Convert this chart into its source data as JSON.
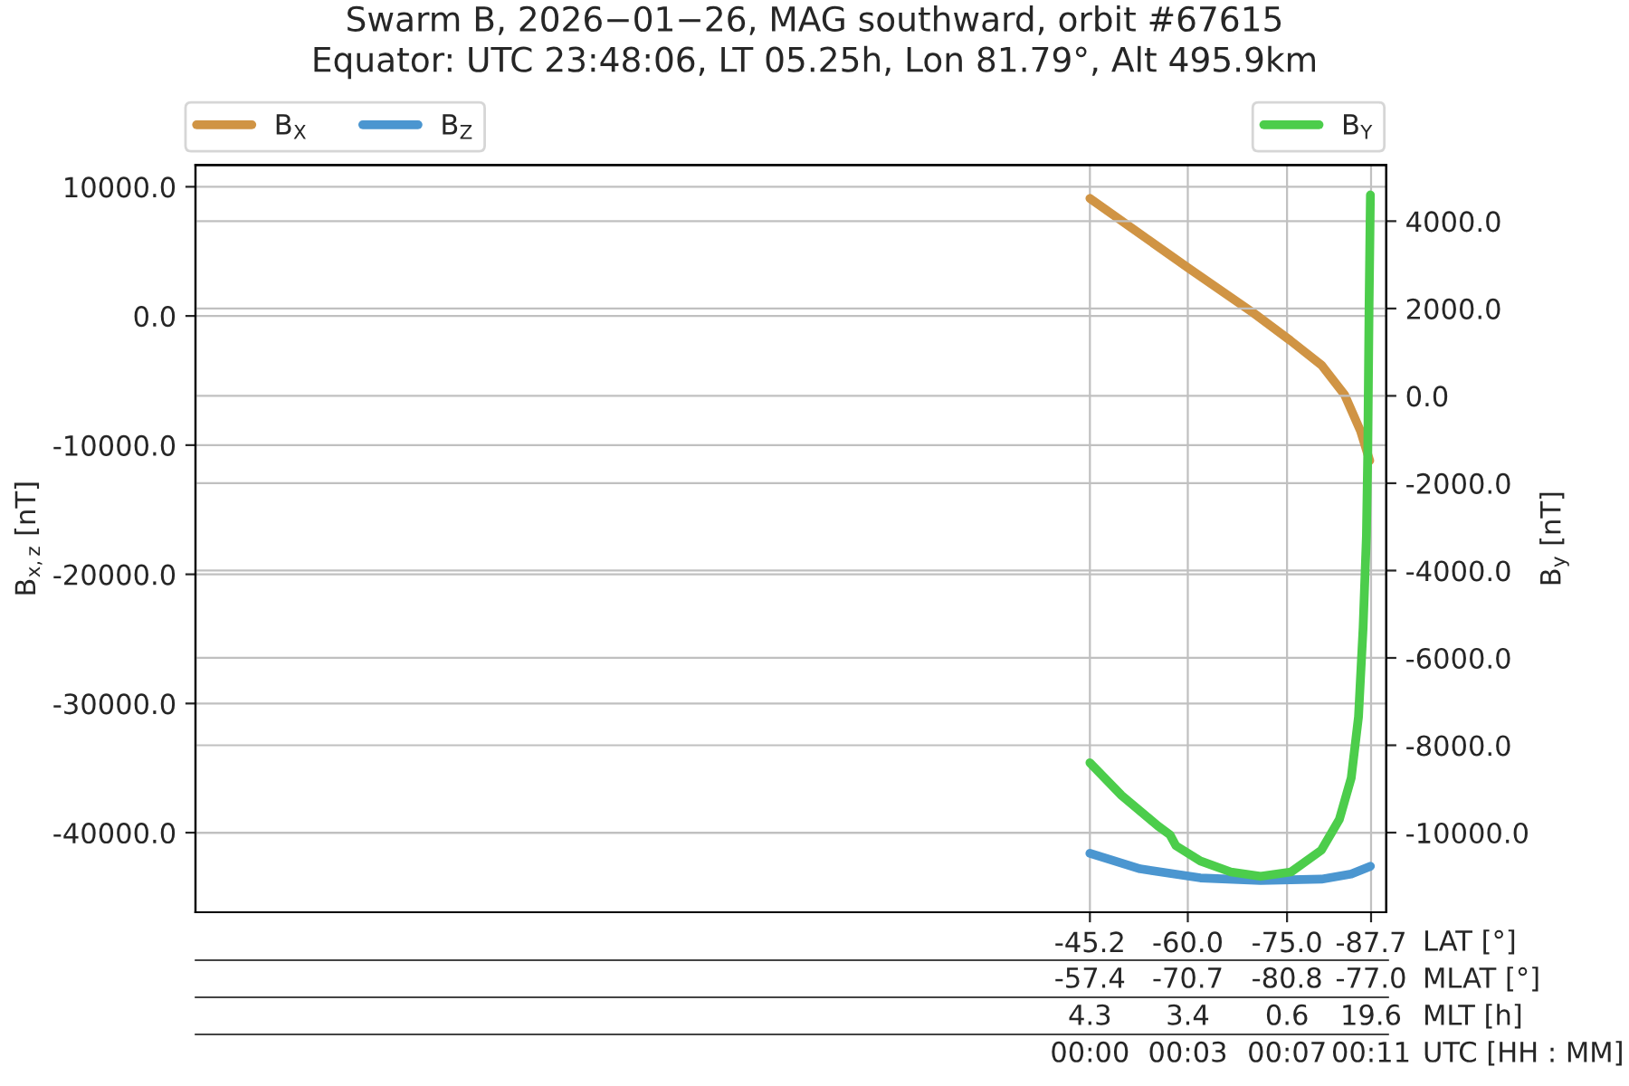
{
  "chart_data": {
    "type": "line",
    "title": "Swarm B, 2026−01−26, MAG southward, orbit #67615",
    "subtitle": "Equator: UTC 23:48:06, LT 05.25h, Lon 81.79°, Alt 495.9km",
    "ylabel": "B$_{x,z}$ [nT]",
    "y2label": "B$_{y}$ [nT]",
    "xlabel": "LAT [°]",
    "annotations": [
      "-57.4",
      "-70.7",
      "-80.8",
      "-77.0",
      "MLAT [°]",
      "4.3",
      "3.4",
      "0.6",
      "19.6",
      "MLT [h]",
      "00:00",
      "00:03",
      "00:07",
      "00:11",
      "UTC [HH : MM]"
    ],
    "series": [
      {
        "name": "B$_{X}$",
        "color": "#d09444",
        "x": [
          -45.2,
          -60.1,
          -70.0,
          -75.5,
          -80.2,
          -83.7,
          -86.1,
          -87.5
        ],
        "values": [
          9100,
          3700,
          200,
          -1900,
          -3800,
          -6100,
          -8900,
          -11200
        ]
      },
      {
        "name": "B$_{Z}$",
        "color": "#4b96d0",
        "x": [
          -45.2,
          -52.8,
          -61.9,
          -71.0,
          -80.2,
          -84.7,
          -87.6
        ],
        "values": [
          -41600,
          -42800,
          -43500,
          -43700,
          -43600,
          -43200,
          -42600
        ]
      },
      {
        "name": "B$_{Y}$",
        "color": "#4ccd4b",
        "axis": "y2",
        "x": [
          -45.2,
          -50.0,
          -55.5,
          -57.3,
          -58.2,
          -61.9,
          -66.5,
          -71.0,
          -75.6,
          -80.2,
          -82.9,
          -84.7,
          -85.8,
          -86.5,
          -87.0,
          -87.2,
          -87.4,
          -87.6
        ],
        "values": [
          -8400,
          -9150,
          -9850,
          -10050,
          -10300,
          -10650,
          -10900,
          -11000,
          -10900,
          -10400,
          -9700,
          -8750,
          -7350,
          -5300,
          -3200,
          -1300,
          2050,
          4600
        ]
      }
    ],
    "xlim": [
      90,
      -90
    ],
    "xticks": [
      -45.2,
      {
        "value": -60,
        "label": "-60.0"
      },
      {
        "value": -75,
        "label": "-75.0"
      },
      -87.7
    ],
    "ylim": [
      -46160,
      11680
    ],
    "yticks": [
      {
        "value": 10000,
        "label": "10000.0"
      },
      {
        "value": 0,
        "label": "0.0"
      },
      {
        "value": -10000,
        "label": "-10000.0"
      },
      {
        "value": -20000,
        "label": "-20000.0"
      },
      {
        "value": -30000,
        "label": "-30000.0"
      },
      {
        "value": -40000,
        "label": "-40000.0"
      }
    ],
    "y2lim": [
      -11823,
      5284
    ],
    "y2ticks": [
      {
        "value": 4000,
        "label": "4000.0"
      },
      {
        "value": 2000,
        "label": "2000.0"
      },
      {
        "value": 0,
        "label": "0.0"
      },
      {
        "value": -2000,
        "label": "-2000.0"
      },
      {
        "value": -4000,
        "label": "-4000.0"
      },
      {
        "value": -6000,
        "label": "-6000.0"
      },
      {
        "value": -8000,
        "label": "-8000.0"
      },
      {
        "value": -10000,
        "label": "-10000.0"
      }
    ],
    "grid": true,
    "legend": "top",
    "line_style": "solid",
    "marker": "none"
  }
}
